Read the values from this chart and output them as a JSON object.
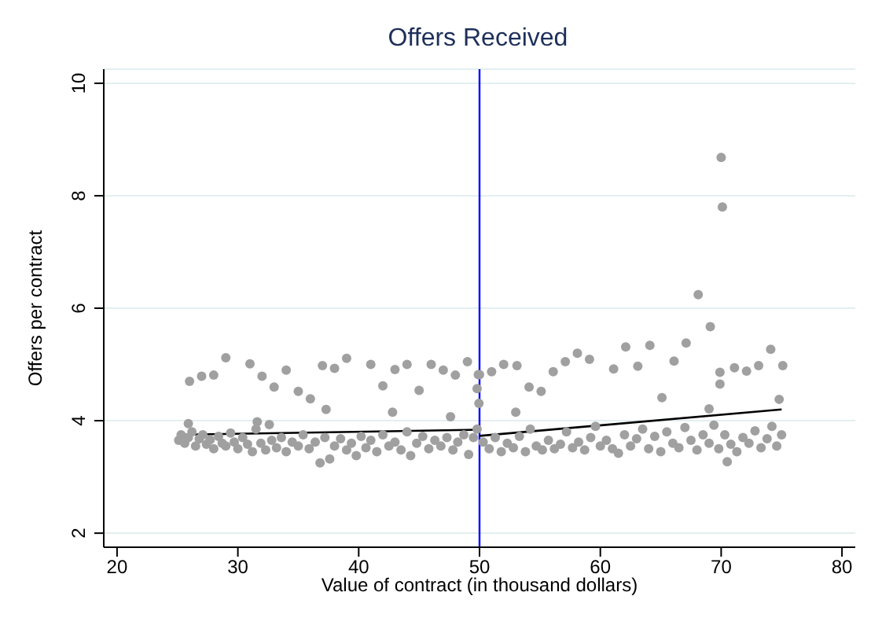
{
  "chart_data": {
    "type": "scatter",
    "title": "Offers Received",
    "xlabel": "Value of contract (in thousand dollars)",
    "ylabel": "Offers per contract",
    "xlim": [
      18.9,
      81.1
    ],
    "ylim": [
      1.75,
      10.25
    ],
    "xticks": [
      20,
      30,
      40,
      50,
      60,
      70,
      80
    ],
    "yticks": [
      2,
      4,
      6,
      8,
      10
    ],
    "grid": "y",
    "ref_lines": [
      {
        "axis": "x",
        "value": 50,
        "color": "#0000ff"
      }
    ],
    "series": [
      {
        "type": "scatter",
        "marker": "circle",
        "color": "#a0a0a0",
        "x": [
          26.0,
          27.0,
          28.0,
          29.0,
          31.0,
          32.0,
          33.0,
          34.0,
          35.0,
          36.0,
          37.0,
          37.3,
          38.0,
          39.0,
          41.0,
          42.0,
          43.0,
          42.8,
          44.0,
          45.0,
          46.0,
          47.0,
          47.6,
          48.0,
          49.0,
          49.9,
          49.8,
          25.9,
          31.6,
          32.6,
          51.0,
          52.0,
          53.1,
          53.0,
          54.1,
          55.1,
          56.1,
          57.1,
          58.1,
          59.1,
          61.1,
          62.1,
          63.1,
          64.1,
          65.1,
          66.1,
          67.1,
          68.1,
          69.1,
          70.0,
          70.1,
          69.9,
          69.9,
          69.0,
          71.1,
          72.1,
          73.1,
          74.1,
          75.1,
          74.8,
          50.0,
          49.95,
          70.5,
          25.1,
          25.3,
          25.6,
          25.9,
          26.2,
          26.5,
          26.8,
          27.1,
          27.4,
          27.7,
          28.0,
          28.4,
          28.7,
          29.0,
          29.4,
          29.7,
          30.0,
          30.4,
          30.8,
          31.2,
          31.5,
          31.9,
          32.3,
          32.8,
          33.2,
          33.6,
          34.0,
          34.5,
          35.0,
          35.4,
          35.9,
          36.4,
          36.8,
          37.2,
          37.6,
          38.0,
          38.5,
          39.0,
          39.4,
          39.8,
          40.2,
          40.6,
          41.0,
          41.5,
          42.0,
          42.5,
          43.0,
          43.5,
          44.0,
          44.3,
          44.8,
          45.3,
          45.8,
          46.3,
          46.8,
          47.3,
          47.8,
          48.2,
          48.7,
          49.1,
          49.5,
          49.8,
          50.3,
          50.8,
          51.3,
          51.8,
          52.3,
          52.8,
          53.3,
          53.8,
          54.2,
          54.7,
          55.2,
          55.7,
          56.2,
          56.7,
          57.2,
          57.7,
          58.2,
          58.7,
          59.2,
          59.6,
          60.0,
          60.5,
          61.0,
          61.5,
          62.0,
          62.5,
          63.0,
          63.5,
          64.0,
          64.5,
          65.0,
          65.5,
          66.0,
          66.5,
          67.0,
          67.5,
          68.0,
          68.5,
          69.0,
          69.4,
          69.8,
          70.3,
          70.8,
          71.3,
          71.8,
          72.3,
          72.8,
          73.3,
          73.8,
          74.2,
          74.6,
          75.0
        ],
        "values": [
          4.7,
          4.79,
          4.81,
          5.12,
          5.01,
          4.79,
          4.6,
          4.9,
          4.52,
          4.39,
          4.98,
          4.2,
          4.93,
          5.11,
          5.0,
          4.62,
          4.91,
          4.15,
          5.0,
          4.54,
          5.0,
          4.9,
          4.07,
          4.81,
          5.05,
          4.82,
          4.57,
          3.95,
          3.98,
          3.93,
          4.87,
          5.0,
          4.98,
          4.15,
          4.6,
          4.52,
          4.87,
          5.05,
          5.2,
          5.09,
          4.92,
          5.31,
          4.97,
          5.34,
          4.41,
          5.06,
          5.38,
          6.24,
          5.67,
          8.68,
          7.8,
          4.86,
          4.65,
          4.21,
          4.94,
          4.88,
          4.98,
          5.27,
          4.98,
          4.38,
          4.82,
          4.31,
          3.27,
          3.65,
          3.75,
          3.6,
          3.7,
          3.8,
          3.55,
          3.68,
          3.75,
          3.58,
          3.66,
          3.5,
          3.72,
          3.6,
          3.55,
          3.78,
          3.62,
          3.5,
          3.7,
          3.58,
          3.45,
          3.85,
          3.6,
          3.48,
          3.65,
          3.52,
          3.7,
          3.45,
          3.62,
          3.55,
          3.75,
          3.5,
          3.62,
          3.25,
          3.7,
          3.32,
          3.55,
          3.68,
          3.48,
          3.6,
          3.38,
          3.72,
          3.52,
          3.65,
          3.45,
          3.75,
          3.55,
          3.62,
          3.48,
          3.8,
          3.38,
          3.6,
          3.72,
          3.5,
          3.65,
          3.55,
          3.7,
          3.48,
          3.62,
          3.75,
          3.4,
          3.7,
          3.85,
          3.62,
          3.5,
          3.7,
          3.45,
          3.6,
          3.52,
          3.72,
          3.45,
          3.85,
          3.55,
          3.48,
          3.65,
          3.5,
          3.58,
          3.8,
          3.52,
          3.62,
          3.48,
          3.7,
          3.9,
          3.55,
          3.65,
          3.5,
          3.42,
          3.75,
          3.55,
          3.68,
          3.85,
          3.5,
          3.72,
          3.45,
          3.8,
          3.6,
          3.52,
          3.88,
          3.65,
          3.48,
          3.75,
          3.6,
          3.92,
          3.5,
          3.75,
          3.58,
          3.45,
          3.7,
          3.6,
          3.82,
          3.52,
          3.68,
          3.9,
          3.55,
          3.75
        ]
      },
      {
        "type": "line",
        "color": "#000000",
        "x": [
          25,
          50
        ],
        "values": [
          3.75,
          3.84
        ]
      },
      {
        "type": "line",
        "color": "#000000",
        "x": [
          50,
          75
        ],
        "values": [
          3.73,
          4.2
        ]
      }
    ]
  }
}
